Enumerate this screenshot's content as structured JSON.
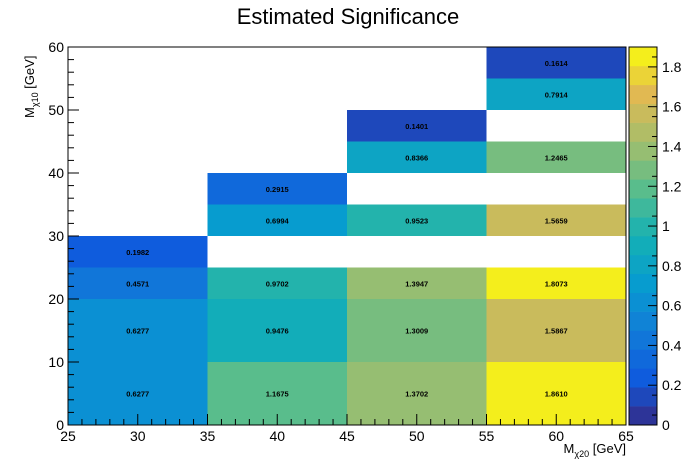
{
  "chart_data": {
    "type": "heatmap",
    "title": "Estimated Significance",
    "xlabel": {
      "main": "M",
      "sub": "χ20",
      "unit": " [GeV]"
    },
    "ylabel": {
      "main": "M",
      "sub": "χ10",
      "unit": " [GeV]"
    },
    "xlim": [
      25,
      65
    ],
    "ylim": [
      0,
      60
    ],
    "x_ticks": [
      "25",
      "30",
      "35",
      "40",
      "45",
      "50",
      "55",
      "60",
      "65"
    ],
    "y_ticks": [
      "0",
      "10",
      "20",
      "30",
      "40",
      "50",
      "60"
    ],
    "colorbar": {
      "range": [
        0,
        1.9
      ],
      "ticks": [
        "0",
        "0.2",
        "0.4",
        "0.6",
        "0.8",
        "1",
        "1.2",
        "1.4",
        "1.6",
        "1.8"
      ]
    },
    "grid": false,
    "cells": [
      {
        "x": [
          25,
          35
        ],
        "y": [
          0,
          10
        ],
        "value": 0.6277,
        "label": "0.6277"
      },
      {
        "x": [
          25,
          35
        ],
        "y": [
          10,
          20
        ],
        "value": 0.6277,
        "label": "0.6277"
      },
      {
        "x": [
          25,
          35
        ],
        "y": [
          20,
          25
        ],
        "value": 0.4571,
        "label": "0.4571"
      },
      {
        "x": [
          25,
          35
        ],
        "y": [
          25,
          30
        ],
        "value": 0.1982,
        "label": "0.1982"
      },
      {
        "x": [
          35,
          45
        ],
        "y": [
          0,
          10
        ],
        "value": 1.1675,
        "label": "1.1675"
      },
      {
        "x": [
          35,
          45
        ],
        "y": [
          10,
          20
        ],
        "value": 0.9476,
        "label": "0.9476"
      },
      {
        "x": [
          35,
          45
        ],
        "y": [
          20,
          25
        ],
        "value": 0.9702,
        "label": "0.9702"
      },
      {
        "x": [
          35,
          45
        ],
        "y": [
          30,
          35
        ],
        "value": 0.6994,
        "label": "0.6994"
      },
      {
        "x": [
          35,
          45
        ],
        "y": [
          35,
          40
        ],
        "value": 0.2915,
        "label": "0.2915"
      },
      {
        "x": [
          45,
          55
        ],
        "y": [
          0,
          10
        ],
        "value": 1.3702,
        "label": "1.3702"
      },
      {
        "x": [
          45,
          55
        ],
        "y": [
          10,
          20
        ],
        "value": 1.3009,
        "label": "1.3009"
      },
      {
        "x": [
          45,
          55
        ],
        "y": [
          20,
          25
        ],
        "value": 1.3947,
        "label": "1.3947"
      },
      {
        "x": [
          45,
          55
        ],
        "y": [
          30,
          35
        ],
        "value": 0.9523,
        "label": "0.9523"
      },
      {
        "x": [
          45,
          55
        ],
        "y": [
          40,
          45
        ],
        "value": 0.8366,
        "label": "0.8366"
      },
      {
        "x": [
          45,
          55
        ],
        "y": [
          45,
          50
        ],
        "value": 0.1401,
        "label": "0.1401"
      },
      {
        "x": [
          55,
          65
        ],
        "y": [
          0,
          10
        ],
        "value": 1.861,
        "label": "1.8610"
      },
      {
        "x": [
          55,
          65
        ],
        "y": [
          10,
          20
        ],
        "value": 1.5867,
        "label": "1.5867"
      },
      {
        "x": [
          55,
          65
        ],
        "y": [
          20,
          25
        ],
        "value": 1.8073,
        "label": "1.8073"
      },
      {
        "x": [
          55,
          65
        ],
        "y": [
          30,
          35
        ],
        "value": 1.5659,
        "label": "1.5659"
      },
      {
        "x": [
          55,
          65
        ],
        "y": [
          40,
          45
        ],
        "value": 1.2465,
        "label": "1.2465"
      },
      {
        "x": [
          55,
          65
        ],
        "y": [
          50,
          55
        ],
        "value": 0.7914,
        "label": "0.7914"
      },
      {
        "x": [
          55,
          65
        ],
        "y": [
          55,
          60
        ],
        "value": 0.1614,
        "label": "0.1614"
      }
    ]
  }
}
